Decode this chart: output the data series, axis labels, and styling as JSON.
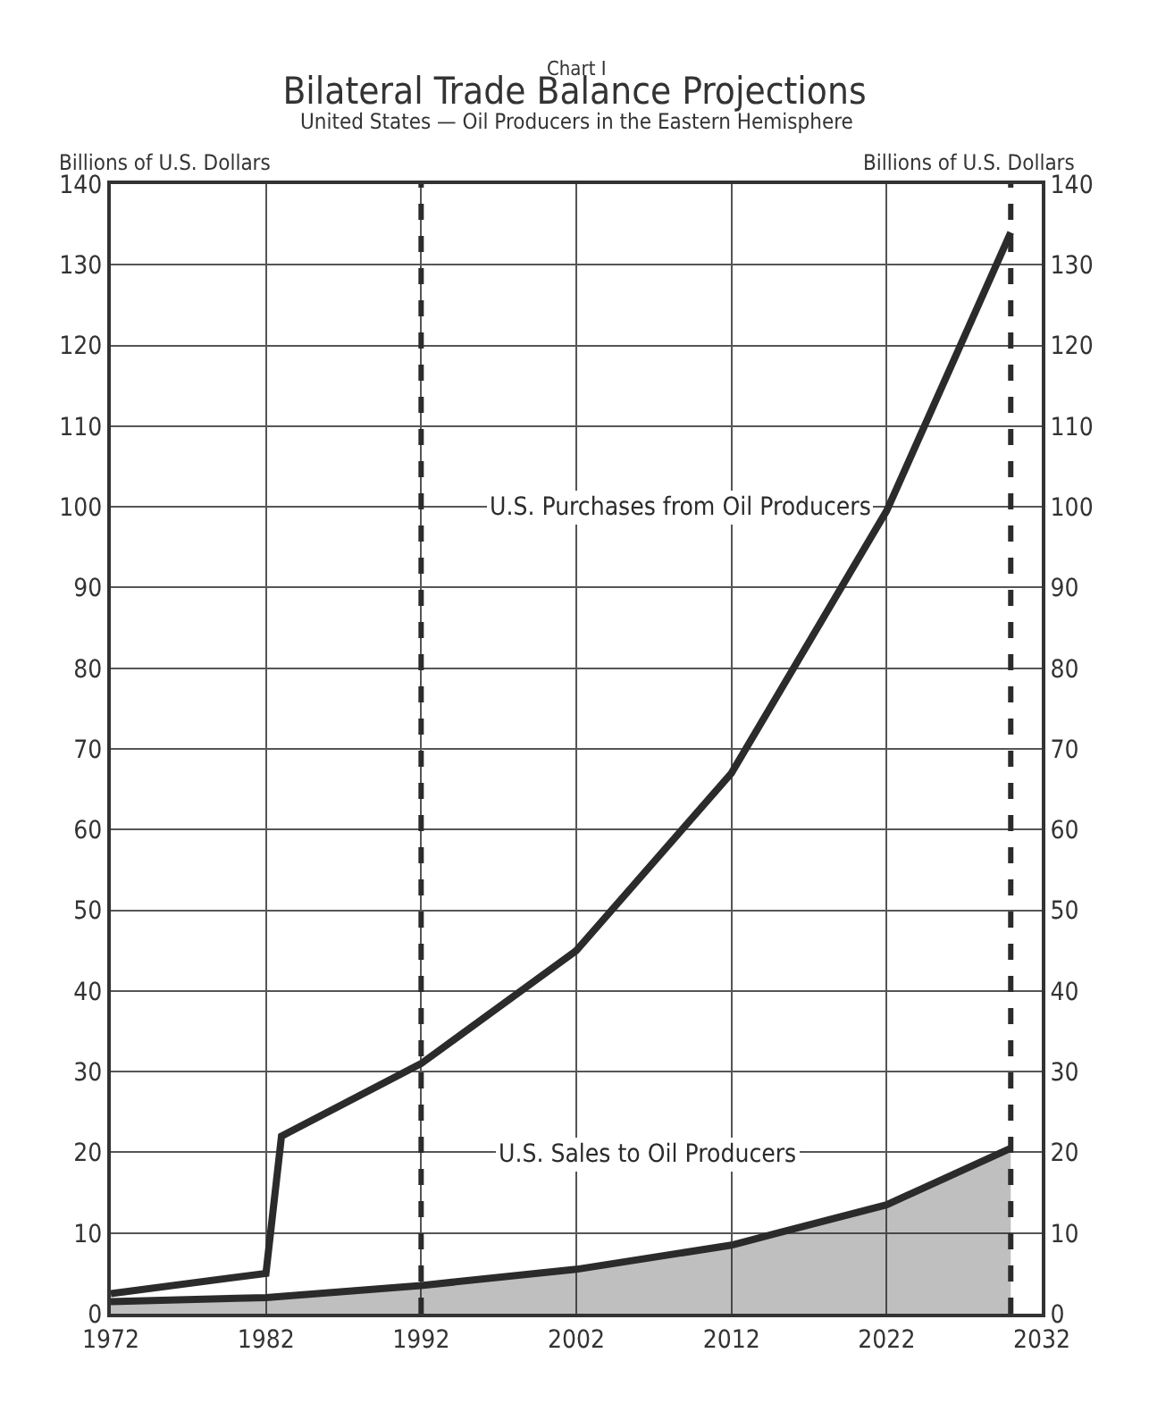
{
  "chart_data": {
    "type": "line",
    "title": "Bilateral Trade Balance Projections",
    "subtitle": "United States — Oil Producers in the Eastern Hemisphere",
    "ylabel": "Billions of U.S. Dollars",
    "y2label": "Billions of U.S. Dollars",
    "annotations": [
      "Chart I"
    ],
    "series": [
      {
        "name": "U.S. Purchases from Oil Producers",
        "color": "#2b2b2b",
        "x": [
          1972,
          1982,
          1983,
          1992,
          2002,
          2012,
          2022,
          2030
        ],
        "values": [
          2.5,
          5,
          22,
          31,
          45,
          67,
          99.5,
          134
        ]
      },
      {
        "name": "U.S. Sales to Oil Producers",
        "type": "area",
        "color": "#2b2b2b",
        "x": [
          1972,
          1982,
          1992,
          2002,
          2012,
          2015,
          2022,
          2030
        ],
        "values": [
          1.5,
          2,
          3.5,
          5.5,
          8.5,
          10,
          13.5,
          20.5
        ]
      }
    ],
    "xlim": [
      1972,
      2032
    ],
    "xticks": [
      1972,
      1982,
      1992,
      2002,
      2012,
      2022,
      2032
    ],
    "ylim": [
      0,
      140
    ],
    "yticks": [
      0,
      10,
      20,
      30,
      40,
      50,
      60,
      70,
      80,
      90,
      100,
      110,
      120,
      130,
      140
    ],
    "y2lim": [
      0,
      140
    ],
    "y2ticks": [
      0,
      10,
      20,
      30,
      40,
      50,
      60,
      70,
      80,
      90,
      100,
      110,
      120,
      130,
      140
    ],
    "ref_lines": [
      {
        "axis": "x",
        "value": 1992,
        "color": "#2b2b2b",
        "line_style": "dashed"
      },
      {
        "axis": "x",
        "value": 2030,
        "color": "#2b2b2b",
        "line_style": "dashed"
      }
    ],
    "grid": true
  }
}
